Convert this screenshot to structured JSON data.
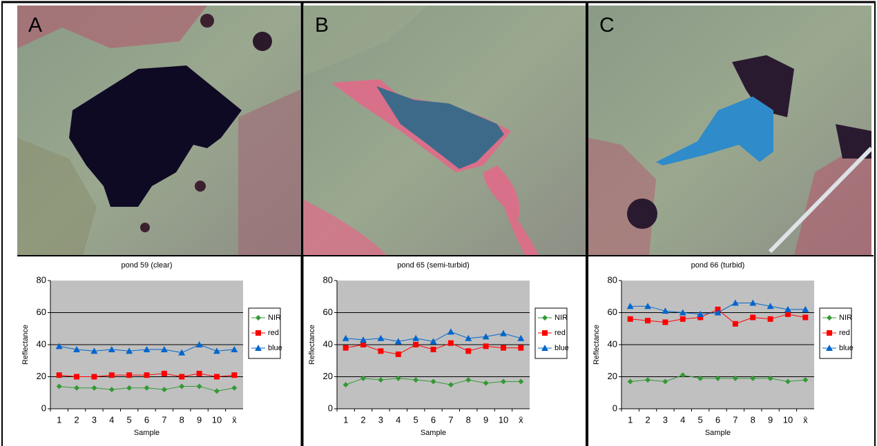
{
  "chart_data": [
    {
      "type": "line",
      "panel": "A",
      "title": "pond 59 (clear)",
      "x_label": "Sample",
      "y_label": "Reflectance",
      "categories": [
        "1",
        "2",
        "3",
        "4",
        "5",
        "6",
        "7",
        "8",
        "9",
        "10",
        "x̄"
      ],
      "ylim": [
        0,
        80
      ],
      "yticks": [
        0,
        20,
        40,
        60,
        80
      ],
      "grid": true,
      "legend": "right",
      "series": [
        {
          "name": "NIR",
          "color": "#339933",
          "marker": "diamond",
          "values": [
            14,
            13,
            13,
            12,
            13,
            13,
            12,
            14,
            14,
            11,
            13
          ]
        },
        {
          "name": "red",
          "color": "#ff0000",
          "marker": "square",
          "values": [
            21,
            20,
            20,
            21,
            21,
            21,
            22,
            20,
            22,
            20,
            21
          ]
        },
        {
          "name": "blue",
          "color": "#0066cc",
          "marker": "triangle",
          "values": [
            39,
            37,
            36,
            37,
            36,
            37,
            37,
            35,
            40,
            36,
            37
          ]
        }
      ]
    },
    {
      "type": "line",
      "panel": "B",
      "title": "pond 65 (semi-turbid)",
      "x_label": "Sample",
      "y_label": "Reflectance",
      "categories": [
        "1",
        "2",
        "3",
        "4",
        "5",
        "6",
        "7",
        "8",
        "9",
        "10",
        "x̄"
      ],
      "ylim": [
        0,
        80
      ],
      "yticks": [
        0,
        20,
        40,
        60,
        80
      ],
      "grid": true,
      "legend": "right",
      "series": [
        {
          "name": "NIR",
          "color": "#339933",
          "marker": "diamond",
          "values": [
            15,
            19,
            18,
            19,
            18,
            17,
            15,
            18,
            16,
            17,
            17
          ]
        },
        {
          "name": "red",
          "color": "#ff0000",
          "marker": "square",
          "values": [
            38,
            40,
            36,
            34,
            40,
            37,
            41,
            36,
            39,
            38,
            38
          ]
        },
        {
          "name": "blue",
          "color": "#0066cc",
          "marker": "triangle",
          "values": [
            44,
            43,
            44,
            42,
            44,
            42,
            48,
            44,
            45,
            47,
            44
          ]
        }
      ]
    },
    {
      "type": "line",
      "panel": "C",
      "title": "pond 66 (turbid)",
      "x_label": "Sample",
      "y_label": "Reflectance",
      "categories": [
        "1",
        "2",
        "3",
        "4",
        "5",
        "6",
        "7",
        "8",
        "9",
        "10",
        "x̄"
      ],
      "ylim": [
        0,
        80
      ],
      "yticks": [
        0,
        20,
        40,
        60,
        80
      ],
      "grid": true,
      "legend": "right",
      "series": [
        {
          "name": "NIR",
          "color": "#339933",
          "marker": "diamond",
          "values": [
            17,
            18,
            17,
            21,
            19,
            19,
            19,
            19,
            19,
            17,
            18
          ]
        },
        {
          "name": "red",
          "color": "#ff0000",
          "marker": "square",
          "values": [
            56,
            55,
            54,
            56,
            57,
            62,
            53,
            57,
            56,
            59,
            57
          ]
        },
        {
          "name": "blue",
          "color": "#0066cc",
          "marker": "triangle",
          "values": [
            64,
            64,
            61,
            60,
            59,
            60,
            66,
            66,
            64,
            62,
            62
          ]
        }
      ]
    }
  ]
}
